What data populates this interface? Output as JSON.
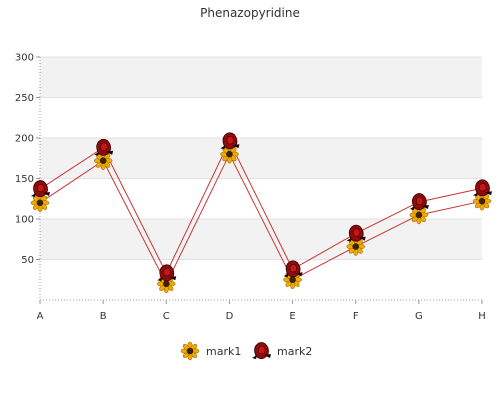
{
  "chart_data": {
    "type": "line",
    "title": "Phenazopyridine",
    "xlabel": "",
    "ylabel": "",
    "categories": [
      "A",
      "B",
      "C",
      "D",
      "E",
      "F",
      "G",
      "H"
    ],
    "ylim": [
      0,
      300
    ],
    "yticks": [
      50,
      100,
      150,
      200,
      250,
      300
    ],
    "grid": true,
    "legend_position": "bottom",
    "series": [
      {
        "name": "mark1",
        "values": [
          120,
          172,
          20,
          180,
          25,
          66,
          105,
          122
        ],
        "marker": "sunflower-icon",
        "color": "#cc3333"
      },
      {
        "name": "mark2",
        "values": [
          137,
          188,
          33,
          196,
          38,
          82,
          121,
          138
        ],
        "marker": "rose-icon",
        "color": "#cc3333"
      }
    ]
  }
}
